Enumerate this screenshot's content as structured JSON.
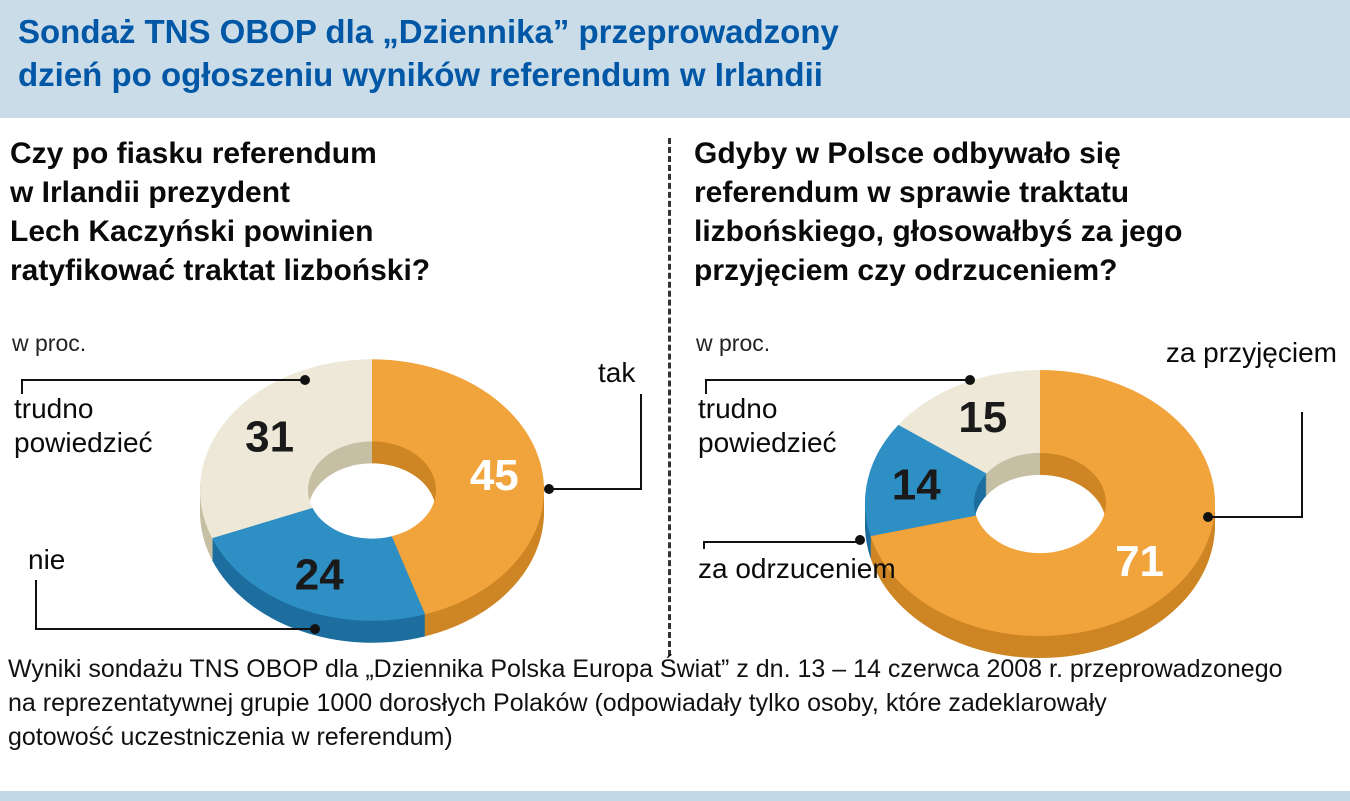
{
  "header": {
    "title": "Sondaż TNS OBOP dla „Dziennika” przeprowadzony\ndzień po ogłoszeniu wyników referendum w Irlandii",
    "bg_color": "#CBDCE9",
    "text_color": "#0057A6"
  },
  "panels": [
    {
      "question": "Czy po fiasku referendum\nw Irlandii prezydent\nLech Kaczyński powinien\nratyfikować traktat lizboński?",
      "unit": "w proc."
    },
    {
      "question": "Gdyby w Polsce odbywało się\nreferendum w sprawie traktatu\nlizbońskiego, głosowałbyś za jego\nprzyjęciem czy odrzuceniem?",
      "unit": "w proc."
    }
  ],
  "chart_data": [
    {
      "type": "pie",
      "title": "Czy po fiasku referendum w Irlandii prezydent Lech Kaczyński powinien ratyfikować traktat lizboński?",
      "unit": "w proc.",
      "segments": [
        {
          "label": "tak",
          "value": 45,
          "color": "#F2A43C",
          "side_color": "#CE8524",
          "text_color": "#FFFFFF"
        },
        {
          "label": "nie",
          "value": 24,
          "color": "#2E8FC4",
          "side_color": "#1D6E9E",
          "text_color": "#1A1A1A"
        },
        {
          "label": "trudno powiedzieć",
          "value": 31,
          "color": "#EDE8D8",
          "side_color": "#C6BFA3",
          "text_color": "#1A1A1A"
        }
      ]
    },
    {
      "type": "pie",
      "title": "Gdyby w Polsce odbywało się referendum w sprawie traktatu lizbońskiego, głosowałbyś za jego przyjęciem czy odrzuceniem?",
      "unit": "w proc.",
      "segments": [
        {
          "label": "za przyjęciem",
          "value": 71,
          "color": "#F2A43C",
          "side_color": "#CE8524",
          "text_color": "#FFFFFF"
        },
        {
          "label": "za odrzuceniem",
          "value": 14,
          "color": "#2E8FC4",
          "side_color": "#1D6E9E",
          "text_color": "#1A1A1A"
        },
        {
          "label": "trudno powiedzieć",
          "value": 15,
          "color": "#EDE8D8",
          "side_color": "#C6BFA3",
          "text_color": "#1A1A1A"
        }
      ]
    }
  ],
  "footer": {
    "text": "Wyniki sondażu TNS OBOP dla „Dziennika Polska Europa Świat” z dn. 13 – 14 czerwca 2008 r. przeprowadzonego\nna reprezentatywnej grupie 1000 dorosłych Polaków (odpowiadały tylko osoby, które zadeklarowały\ngotowość uczestniczenia w referendum)"
  }
}
